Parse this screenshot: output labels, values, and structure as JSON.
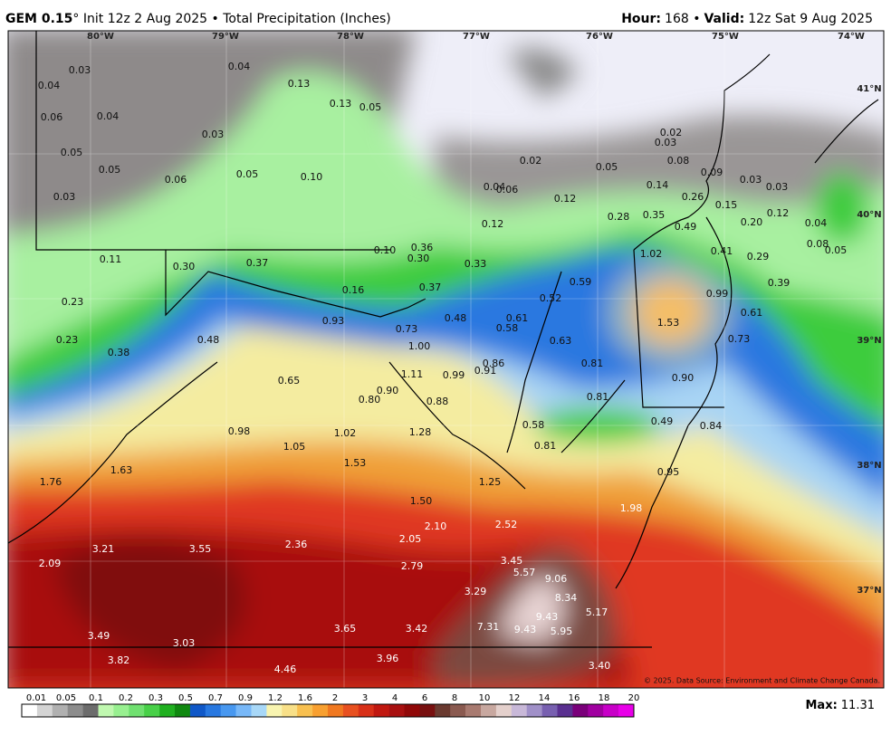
{
  "header": {
    "model": "GEM 0.15",
    "title": "° Init 12z 2 Aug 2025 • Total Precipitation (Inches)",
    "hour_label": "Hour:",
    "hour": "168 •",
    "valid_label": "Valid:",
    "valid": "12z Sat 9 Aug 2025"
  },
  "map": {
    "longitudes": [
      "80°W",
      "79°W",
      "78°W",
      "77°W",
      "76°W",
      "75°W",
      "74°W"
    ],
    "latitudes": [
      "41°N",
      "40°N",
      "39°N",
      "38°N",
      "37°N"
    ],
    "values": [
      "0.03",
      "0.04",
      "0.04",
      "0.13",
      "0.06",
      "0.04",
      "0.13",
      "0.05",
      "0.03",
      "0.05",
      "0.05",
      "0.06",
      "0.05",
      "0.10",
      "0.03",
      "0.02",
      "0.05",
      "0.02",
      "0.03",
      "0.08",
      "0.09",
      "0.03",
      "0.03",
      "0.04",
      "0.06",
      "0.12",
      "0.14",
      "0.26",
      "0.15",
      "0.12",
      "0.04",
      "0.20",
      "0.12",
      "0.28",
      "0.35",
      "0.49",
      "0.08",
      "0.05",
      "0.11",
      "0.10",
      "0.36",
      "0.30",
      "0.33",
      "0.30",
      "0.37",
      "1.02",
      "0.41",
      "0.29",
      "0.16",
      "0.37",
      "0.59",
      "0.39",
      "0.23",
      "0.52",
      "0.99",
      "0.93",
      "0.48",
      "0.61",
      "0.58",
      "0.73",
      "0.61",
      "1.53",
      "0.23",
      "0.48",
      "0.63",
      "0.73",
      "1.00",
      "0.38",
      "0.86",
      "0.81",
      "1.11",
      "0.99",
      "0.91",
      "0.65",
      "0.90",
      "0.90",
      "0.80",
      "0.88",
      "0.81",
      "0.58",
      "0.49",
      "0.84",
      "0.98",
      "1.02",
      "1.28",
      "1.05",
      "0.81",
      "1.63",
      "1.53",
      "0.95",
      "1.76",
      "1.25",
      "1.50",
      "1.98",
      "2.10",
      "2.52",
      "2.05",
      "3.21",
      "3.55",
      "2.36",
      "3.45",
      "2.09",
      "2.79",
      "5.57",
      "9.06",
      "3.29",
      "8.34",
      "5.17",
      "7.31",
      "3.65",
      "3.42",
      "9.43",
      "9.43",
      "5.95",
      "3.49",
      "3.03",
      "3.82",
      "3.40",
      "3.96",
      "4.46"
    ],
    "credit": "© 2025. Data Source: Environment and Climate Change Canada."
  },
  "colorbar": {
    "labels": [
      "0.01",
      "0.05",
      "0.1",
      "0.2",
      "0.3",
      "0.5",
      "0.7",
      "0.9",
      "1.2",
      "1.6",
      "2",
      "3",
      "4",
      "6",
      "8",
      "10",
      "12",
      "14",
      "16",
      "18",
      "20"
    ]
  },
  "footer": {
    "max_label": "Max:",
    "max": "11.31"
  }
}
